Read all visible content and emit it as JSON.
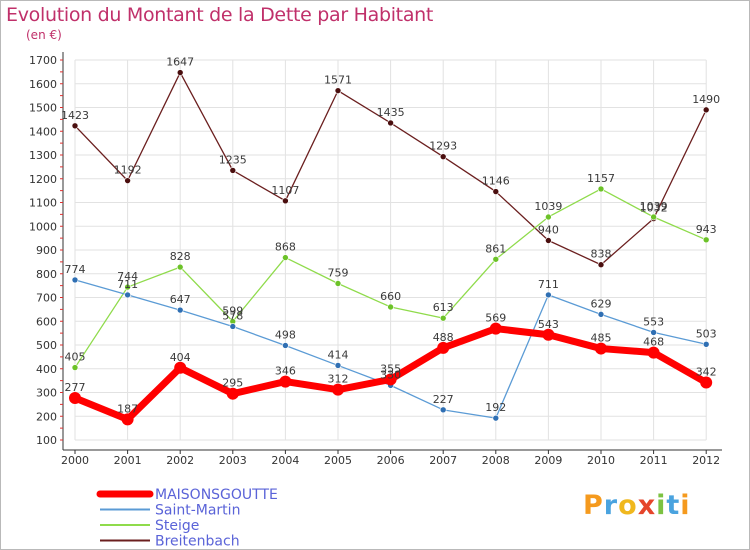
{
  "title": "Evolution du Montant de la Dette par Habitant",
  "subtitle": "(en €)",
  "logo": {
    "letters": [
      "P",
      "r",
      "o",
      "x",
      "i",
      "t",
      "i"
    ],
    "colors": [
      "#f59a1e",
      "#4aa3df",
      "#f0b81e",
      "#e5452b",
      "#7cc242",
      "#4aa3df",
      "#f59a1e"
    ]
  },
  "chart_data": {
    "type": "line",
    "title": "Evolution du Montant de la Dette par Habitant",
    "ylabel": "(en €)",
    "xlabel": "",
    "x": [
      "2000",
      "2001",
      "2002",
      "2003",
      "2004",
      "2005",
      "2006",
      "2007",
      "2008",
      "2009",
      "2010",
      "2011",
      "2012"
    ],
    "ylim": [
      100,
      1700
    ],
    "yticks": [
      100,
      200,
      300,
      400,
      500,
      600,
      700,
      800,
      900,
      1000,
      1100,
      1200,
      1300,
      1400,
      1500,
      1600,
      1700
    ],
    "legend_position": "bottom-left",
    "series": [
      {
        "name": "MAISONSGOUTTE",
        "color": "#ff0000",
        "values": [
          277,
          187,
          404,
          295,
          346,
          312,
          355,
          488,
          569,
          543,
          485,
          468,
          342
        ]
      },
      {
        "name": "Saint-Martin",
        "color": "#5b9bd5",
        "values": [
          774,
          711,
          647,
          578,
          498,
          414,
          330,
          227,
          192,
          711,
          629,
          553,
          503
        ]
      },
      {
        "name": "Steige",
        "color": "#8fdb4b",
        "values": [
          405,
          744,
          828,
          599,
          868,
          759,
          660,
          613,
          861,
          1039,
          1157,
          1039,
          943
        ]
      },
      {
        "name": "Breitenbach",
        "color": "#6b1f1f",
        "values": [
          1423,
          1192,
          1647,
          1235,
          1107,
          1571,
          1435,
          1293,
          1146,
          940,
          838,
          1032,
          1490
        ]
      }
    ]
  }
}
